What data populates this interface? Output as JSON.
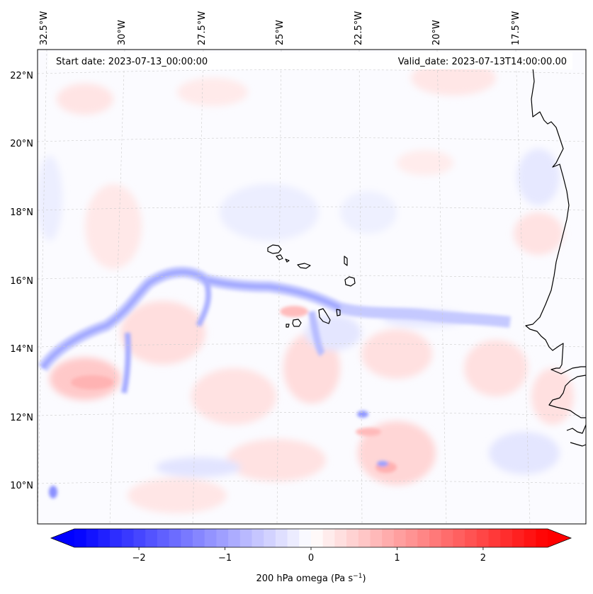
{
  "map": {
    "start_date_label": "Start date: 2023-07-13_00:00:00",
    "valid_date_label": "Valid_date: 2023-07-13T14:00:00.00",
    "lon_labels": [
      "32.5°W",
      "30°W",
      "27.5°W",
      "25°W",
      "22.5°W",
      "20°W",
      "17.5°W"
    ],
    "lat_labels": [
      "22°N",
      "20°N",
      "18°N",
      "16°N",
      "14°N",
      "12°N",
      "10°N"
    ]
  },
  "colorbar": {
    "label_prefix": "200 hPa omega (Pa s",
    "label_exp": "−1",
    "label_suffix": ")",
    "ticks": [
      "−2",
      "−1",
      "0",
      "1",
      "2"
    ],
    "tick_values": [
      -2,
      -1,
      0,
      1,
      2
    ],
    "min": -2.75,
    "max": 2.75,
    "color_low": "#0000ff",
    "color_mid": "#ffffff",
    "color_high": "#ff0000"
  },
  "colors": {
    "coastline": "#000000",
    "gridline": "#cccccc"
  }
}
